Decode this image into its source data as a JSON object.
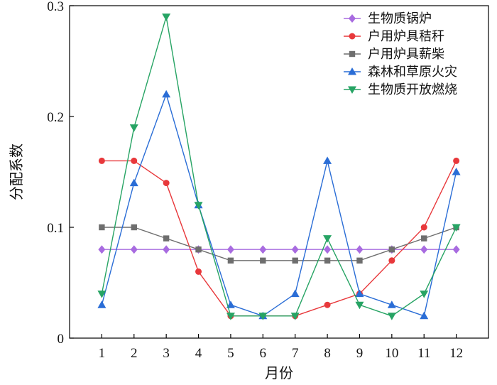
{
  "chart_data": {
    "type": "line",
    "xlabel": "月份",
    "ylabel": "分配系数",
    "x": [
      1,
      2,
      3,
      4,
      5,
      6,
      7,
      8,
      9,
      10,
      11,
      12
    ],
    "xlim": [
      0,
      13
    ],
    "ylim": [
      0,
      0.3
    ],
    "yticks": [
      0,
      0.1,
      0.2,
      0.3
    ],
    "ytick_labels": [
      "0",
      "0.1",
      "0.2",
      "0.3"
    ],
    "xtick_labels": [
      "1",
      "2",
      "3",
      "4",
      "5",
      "6",
      "7",
      "8",
      "9",
      "10",
      "11",
      "12"
    ],
    "grid": false,
    "legend_position": "top-right",
    "series": [
      {
        "name": "生物质锅炉",
        "color": "#A86BE0",
        "marker": "diamond",
        "values": [
          0.08,
          0.08,
          0.08,
          0.08,
          0.08,
          0.08,
          0.08,
          0.08,
          0.08,
          0.08,
          0.08,
          0.08
        ]
      },
      {
        "name": "户用炉具秸秆",
        "color": "#E8383B",
        "marker": "circle",
        "values": [
          0.16,
          0.16,
          0.14,
          0.06,
          0.02,
          0.02,
          0.02,
          0.03,
          0.04,
          0.07,
          0.1,
          0.16
        ]
      },
      {
        "name": "户用炉具薪柴",
        "color": "#6E6E6E",
        "marker": "square",
        "values": [
          0.1,
          0.1,
          0.09,
          0.08,
          0.07,
          0.07,
          0.07,
          0.07,
          0.07,
          0.08,
          0.09,
          0.1
        ]
      },
      {
        "name": "森林和草原火灾",
        "color": "#2A6DD6",
        "marker": "triangle-up",
        "values": [
          0.03,
          0.14,
          0.22,
          0.12,
          0.03,
          0.02,
          0.04,
          0.16,
          0.04,
          0.03,
          0.02,
          0.15
        ]
      },
      {
        "name": "生物质开放燃烧",
        "color": "#27A464",
        "marker": "triangle-down",
        "values": [
          0.04,
          0.19,
          0.29,
          0.12,
          0.02,
          0.02,
          0.02,
          0.09,
          0.03,
          0.02,
          0.04,
          0.1
        ]
      }
    ]
  }
}
